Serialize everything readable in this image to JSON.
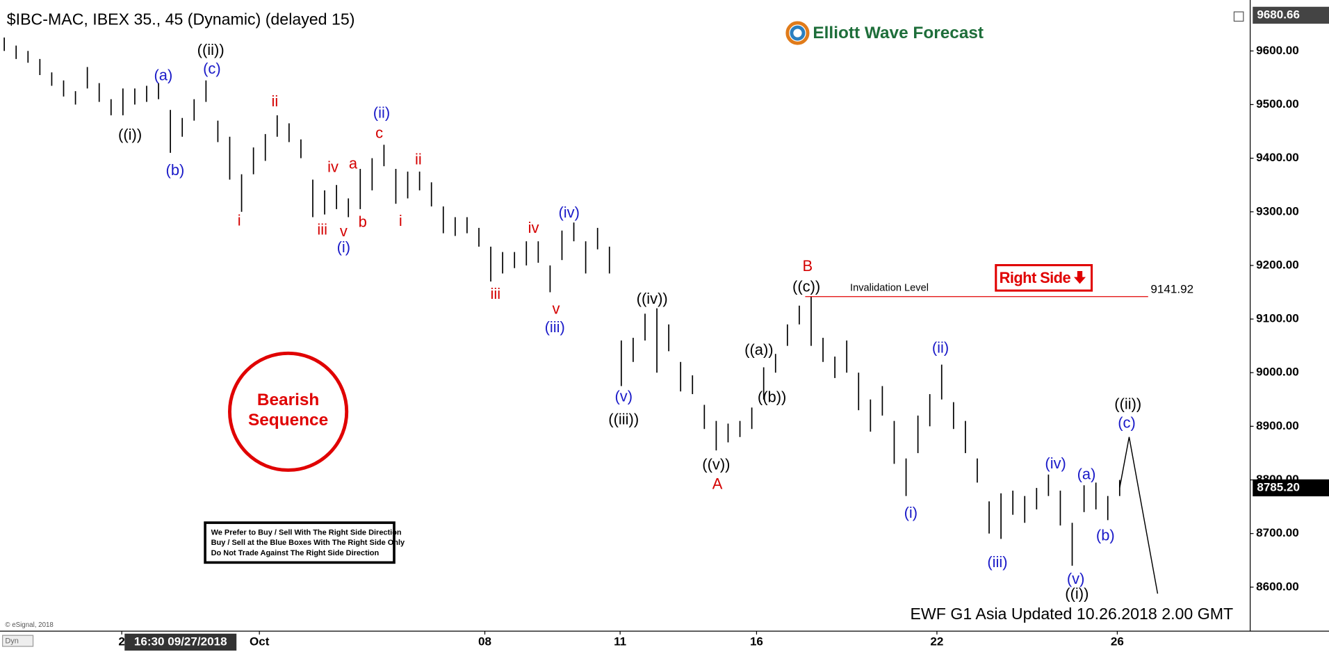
{
  "title": "$IBC-MAC, IBEX 35., 45 (Dynamic) (delayed 15)",
  "logo": "Elliott Wave Forecast",
  "badge": {
    "line1": "Bearish",
    "line2": "Sequence"
  },
  "right_side": "Right Side",
  "notes": [
    "We Prefer to Buy / Sell With The Right Side Direction",
    "Buy / Sell at the Blue Boxes With The Right Side Only",
    "Do Not Trade Against The Right Side Direction"
  ],
  "footer": "EWF G1 Asia Updated 10.26.2018 2.00 GMT",
  "copyright": "© eSignal, 2018",
  "dyn": "Dyn",
  "chart_data": {
    "type": "ohlc",
    "color": "#000000",
    "xlim": [
      -0.36,
      105
    ],
    "ylim": [
      8518,
      9695
    ],
    "xticks": [
      {
        "value": 9.9,
        "label": "2"
      },
      {
        "value": 21.5,
        "label": "Oct"
      },
      {
        "value": 40.5,
        "label": "08"
      },
      {
        "value": 51.9,
        "label": "11"
      },
      {
        "value": 63.4,
        "label": "16"
      },
      {
        "value": 78.6,
        "label": "22"
      },
      {
        "value": 93.8,
        "label": "26"
      }
    ],
    "yticks": [
      {
        "value": 8600,
        "label": "8600.00"
      },
      {
        "value": 8700,
        "label": "8700.00"
      },
      {
        "value": 8800,
        "label": "8800.00"
      },
      {
        "value": 8900,
        "label": "8900.00"
      },
      {
        "value": 9000,
        "label": "9000.00"
      },
      {
        "value": 9100,
        "label": "9100.00"
      },
      {
        "value": 9200,
        "label": "9200.00"
      },
      {
        "value": 9300,
        "label": "9300.00"
      },
      {
        "value": 9400,
        "label": "9400.00"
      },
      {
        "value": 9500,
        "label": "9500.00"
      },
      {
        "value": 9600,
        "label": "9600.00"
      }
    ],
    "high": [
      9625,
      9610,
      9600,
      9585,
      9560,
      9545,
      9525,
      9570,
      9540,
      9510,
      9530,
      9530,
      9535,
      9540,
      9490,
      9475,
      9510,
      9545,
      9470,
      9440,
      9370,
      9420,
      9445,
      9480,
      9465,
      9435,
      9360,
      9340,
      9350,
      9325,
      9380,
      9400,
      9425,
      9380,
      9375,
      9375,
      9355,
      9310,
      9290,
      9290,
      9270,
      9235,
      9225,
      9225,
      9245,
      9245,
      9200,
      9265,
      9280,
      9245,
      9270,
      9235,
      9060,
      9065,
      9110,
      9120,
      9090,
      9020,
      8995,
      8940,
      8910,
      8905,
      8910,
      8935,
      9010,
      9035,
      9090,
      9125,
      9141.92,
      9065,
      9030,
      9060,
      9000,
      8950,
      8975,
      8910,
      8840,
      8920,
      8960,
      9015,
      8945,
      8910,
      8840,
      8760,
      8775,
      8780,
      8770,
      8785,
      8810,
      8780,
      8720,
      8790,
      8795,
      8770,
      8800
    ],
    "low": [
      9600,
      9585,
      9578,
      9555,
      9535,
      9515,
      9500,
      9530,
      9505,
      9480,
      9480,
      9500,
      9505,
      9510,
      9410,
      9440,
      9470,
      9505,
      9430,
      9360,
      9300,
      9370,
      9395,
      9440,
      9430,
      9400,
      9290,
      9295,
      9305,
      9290,
      9305,
      9340,
      9385,
      9315,
      9325,
      9340,
      9310,
      9260,
      9255,
      9260,
      9235,
      9170,
      9185,
      9195,
      9200,
      9205,
      9150,
      9210,
      9245,
      9185,
      9230,
      9185,
      8975,
      9020,
      9060,
      9000,
      9040,
      8965,
      8960,
      8895,
      8855,
      8870,
      8880,
      8895,
      8950,
      9000,
      9050,
      9090,
      9050,
      9020,
      8990,
      9000,
      8930,
      8890,
      8920,
      8830,
      8770,
      8850,
      8900,
      8950,
      8895,
      8850,
      8795,
      8700,
      8690,
      8735,
      8720,
      8745,
      8770,
      8715,
      8640,
      8740,
      8745,
      8725,
      8770
    ],
    "last_price": {
      "value": 8785.2,
      "label": "8785.20"
    },
    "top_price": {
      "value": 9680.66,
      "label": "9680.66"
    },
    "cursor_label": "16:30 09/27/2018",
    "invalidation": {
      "label": "Invalidation Level",
      "value": 9141.92,
      "value_label": "9141.92",
      "x": [
        67.5,
        96.4
      ],
      "color": "#e00000"
    },
    "projection": {
      "x": [
        94,
        94.8,
        97.2
      ],
      "values": [
        8785.2,
        8880,
        8588
      ],
      "color": "#000000"
    },
    "annotations": [
      {
        "text": "((i))",
        "x": 10.6,
        "y": 9442,
        "color": "#000000"
      },
      {
        "text": "(a)",
        "x": 13.4,
        "y": 9553,
        "color": "#1a1ac8"
      },
      {
        "text": "(b)",
        "x": 14.4,
        "y": 9376,
        "color": "#1a1ac8"
      },
      {
        "text": "((ii))",
        "x": 17.4,
        "y": 9600,
        "color": "#000000"
      },
      {
        "text": "(c)",
        "x": 17.5,
        "y": 9565,
        "color": "#1a1ac8"
      },
      {
        "text": "ii",
        "x": 22.8,
        "y": 9504,
        "color": "#d40000"
      },
      {
        "text": "i",
        "x": 19.8,
        "y": 9282,
        "color": "#d40000"
      },
      {
        "text": "iv",
        "x": 27.7,
        "y": 9382,
        "color": "#d40000"
      },
      {
        "text": "a",
        "x": 29.4,
        "y": 9388,
        "color": "#d40000"
      },
      {
        "text": "c",
        "x": 31.6,
        "y": 9445,
        "color": "#d40000"
      },
      {
        "text": "(ii)",
        "x": 31.8,
        "y": 9483,
        "color": "#1a1ac8"
      },
      {
        "text": "ii",
        "x": 34.9,
        "y": 9396,
        "color": "#d40000"
      },
      {
        "text": "iii",
        "x": 26.8,
        "y": 9265,
        "color": "#d40000"
      },
      {
        "text": "v",
        "x": 28.6,
        "y": 9262,
        "color": "#d40000"
      },
      {
        "text": "b",
        "x": 30.2,
        "y": 9279,
        "color": "#d40000"
      },
      {
        "text": "(i)",
        "x": 28.6,
        "y": 9232,
        "color": "#1a1ac8"
      },
      {
        "text": "i",
        "x": 33.4,
        "y": 9281,
        "color": "#d40000"
      },
      {
        "text": "iii",
        "x": 41.4,
        "y": 9145,
        "color": "#d40000"
      },
      {
        "text": "iv",
        "x": 44.6,
        "y": 9268,
        "color": "#d40000"
      },
      {
        "text": "(iv)",
        "x": 47.6,
        "y": 9297,
        "color": "#1a1ac8"
      },
      {
        "text": "v",
        "x": 46.5,
        "y": 9117,
        "color": "#d40000"
      },
      {
        "text": "(iii)",
        "x": 46.4,
        "y": 9083,
        "color": "#1a1ac8"
      },
      {
        "text": "((iv))",
        "x": 54.6,
        "y": 9136,
        "color": "#000000"
      },
      {
        "text": "(v)",
        "x": 52.2,
        "y": 8954,
        "color": "#1a1ac8"
      },
      {
        "text": "((iii))",
        "x": 52.2,
        "y": 8911,
        "color": "#000000"
      },
      {
        "text": "((v))",
        "x": 60,
        "y": 8827,
        "color": "#000000"
      },
      {
        "text": "A",
        "x": 60.1,
        "y": 8791,
        "color": "#d40000"
      },
      {
        "text": "B",
        "x": 67.7,
        "y": 9197,
        "color": "#d40000"
      },
      {
        "text": "((c))",
        "x": 67.6,
        "y": 9159,
        "color": "#000000"
      },
      {
        "text": "((a))",
        "x": 63.6,
        "y": 9041,
        "color": "#000000"
      },
      {
        "text": "((b))",
        "x": 64.7,
        "y": 8953,
        "color": "#000000"
      },
      {
        "text": "(i)",
        "x": 76.4,
        "y": 8737,
        "color": "#1a1ac8"
      },
      {
        "text": "(ii)",
        "x": 78.9,
        "y": 9045,
        "color": "#1a1ac8"
      },
      {
        "text": "(iii)",
        "x": 83.7,
        "y": 8645,
        "color": "#1a1ac8"
      },
      {
        "text": "(iv)",
        "x": 88.6,
        "y": 8829,
        "color": "#1a1ac8"
      },
      {
        "text": "(a)",
        "x": 91.2,
        "y": 8809,
        "color": "#1a1ac8"
      },
      {
        "text": "(b)",
        "x": 92.8,
        "y": 8695,
        "color": "#1a1ac8"
      },
      {
        "text": "(v)",
        "x": 90.3,
        "y": 8614,
        "color": "#1a1ac8"
      },
      {
        "text": "((i))",
        "x": 90.4,
        "y": 8586,
        "color": "#000000"
      },
      {
        "text": "((ii))",
        "x": 94.7,
        "y": 8940,
        "color": "#000000"
      },
      {
        "text": "(c)",
        "x": 94.6,
        "y": 8905,
        "color": "#1a1ac8"
      }
    ]
  }
}
